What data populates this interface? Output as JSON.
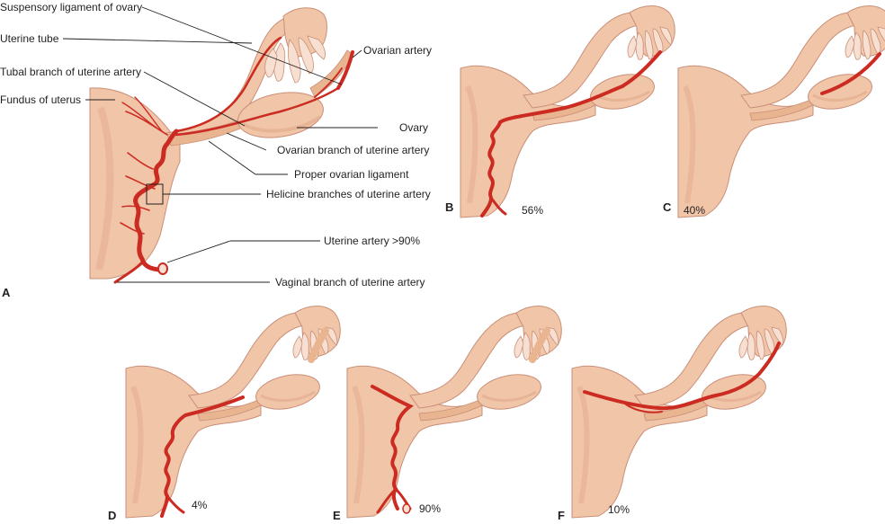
{
  "colors": {
    "tissue": "#f1c5a8",
    "tissue_edge": "#c98f78",
    "artery": "#cc2b22",
    "artery_dark": "#9e1c16",
    "fimbria_inner": "#f7e0d2",
    "ligament": "#e8b590",
    "text": "#231f20"
  },
  "labels": {
    "suspensory": "Suspensory ligament of ovary",
    "uterine_tube": "Uterine tube",
    "tubal_branch": "Tubal branch  of uterine artery",
    "fundus": "Fundus of uterus",
    "ovarian_artery": "Ovarian artery",
    "ovary": "Ovary",
    "ovarian_branch": "Ovarian branch of uterine artery",
    "proper_ligament": "Proper ovarian ligament",
    "helicine": "Helicine branches of uterine artery",
    "uterine_artery": "Uterine artery >90%",
    "vaginal": "Vaginal branch of uterine artery"
  },
  "panels": [
    {
      "letter": "A",
      "percent": ""
    },
    {
      "letter": "B",
      "percent": "56%"
    },
    {
      "letter": "C",
      "percent": "40%"
    },
    {
      "letter": "D",
      "percent": "4%"
    },
    {
      "letter": "E",
      "percent": "90%"
    },
    {
      "letter": "F",
      "percent": "10%"
    }
  ],
  "icons": {
    "panel_a": "uterine-adnexa-full-illustration",
    "variant": "uterine-adnexa-variant-illustration"
  }
}
